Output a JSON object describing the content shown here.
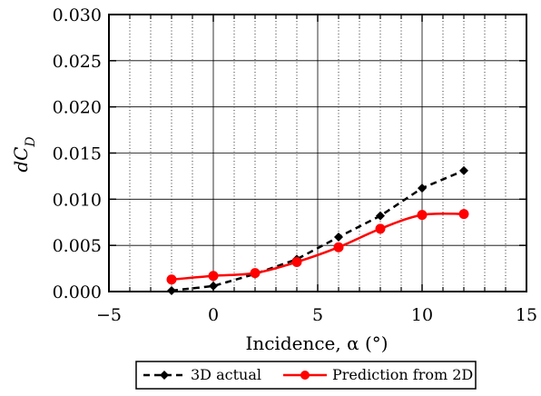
{
  "chart_data": {
    "type": "line",
    "xlabel": "Incidence, α (°)",
    "ylabel": "dC_D",
    "xlim": [
      -5,
      15
    ],
    "ylim": [
      0.0,
      0.03
    ],
    "x_ticks": [
      "−5",
      "0",
      "5",
      "10",
      "15"
    ],
    "y_ticks": [
      "0.000",
      "0.005",
      "0.010",
      "0.015",
      "0.020",
      "0.025",
      "0.030"
    ],
    "grid": true,
    "legend_position": "bottom-center",
    "series": [
      {
        "name": "3D actual",
        "color": "#000000",
        "line_style": "dashed",
        "marker": "diamond",
        "x": [
          -2,
          0,
          2,
          4,
          6,
          8,
          10,
          12
        ],
        "y": [
          0.0001,
          0.0006,
          0.0019,
          0.0035,
          0.0059,
          0.0082,
          0.0112,
          0.0131
        ]
      },
      {
        "name": "Prediction from 2D",
        "color": "#ff0000",
        "line_style": "solid",
        "marker": "circle",
        "x": [
          -2,
          0,
          2,
          4,
          6,
          8,
          10,
          12
        ],
        "y": [
          0.0013,
          0.0017,
          0.002,
          0.0032,
          0.0048,
          0.0068,
          0.0083,
          0.0084
        ]
      }
    ]
  }
}
